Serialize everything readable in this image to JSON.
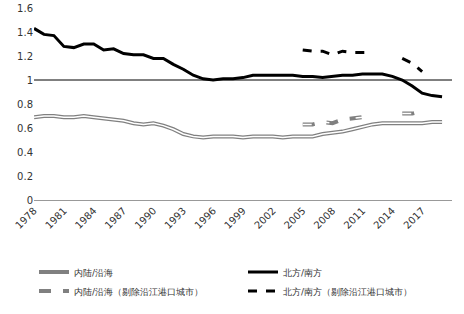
{
  "chart_data": {
    "type": "line",
    "x": [
      1978,
      1979,
      1980,
      1981,
      1982,
      1983,
      1984,
      1985,
      1986,
      1987,
      1988,
      1989,
      1990,
      1991,
      1992,
      1993,
      1994,
      1995,
      1996,
      1997,
      1998,
      1999,
      2000,
      2001,
      2002,
      2003,
      2004,
      2005,
      2006,
      2007,
      2008,
      2009,
      2010,
      2011,
      2012,
      2013,
      2014,
      2015,
      2016,
      2017,
      2018,
      2019
    ],
    "series": [
      {
        "name": "内陆/沿海",
        "color": "#808080",
        "line_style": "double",
        "values": [
          0.69,
          0.7,
          0.7,
          0.69,
          0.69,
          0.7,
          0.69,
          0.68,
          0.67,
          0.66,
          0.64,
          0.63,
          0.64,
          0.62,
          0.59,
          0.55,
          0.53,
          0.52,
          0.53,
          0.53,
          0.53,
          0.52,
          0.53,
          0.53,
          0.53,
          0.52,
          0.53,
          0.53,
          0.53,
          0.55,
          0.56,
          0.57,
          0.59,
          0.61,
          0.63,
          0.64,
          0.64,
          0.64,
          0.64,
          0.64,
          0.65,
          0.65
        ]
      },
      {
        "name": "北方/南方",
        "color": "#000000",
        "line_style": "bold",
        "values": [
          1.43,
          1.38,
          1.37,
          1.28,
          1.27,
          1.3,
          1.3,
          1.25,
          1.26,
          1.22,
          1.21,
          1.21,
          1.18,
          1.18,
          1.13,
          1.09,
          1.04,
          1.01,
          1.0,
          1.01,
          1.01,
          1.02,
          1.04,
          1.04,
          1.04,
          1.04,
          1.04,
          1.03,
          1.03,
          1.02,
          1.03,
          1.04,
          1.04,
          1.05,
          1.05,
          1.05,
          1.03,
          1.0,
          0.95,
          0.89,
          0.87,
          0.86
        ]
      },
      {
        "name": "内陆/沿海（剔除沿江港口城市）",
        "color": "#808080",
        "line_style": "double-dash",
        "values": [
          null,
          null,
          null,
          null,
          null,
          null,
          null,
          null,
          null,
          null,
          null,
          null,
          null,
          null,
          null,
          null,
          null,
          null,
          null,
          null,
          null,
          null,
          null,
          null,
          null,
          null,
          null,
          0.63,
          0.63,
          0.65,
          0.64,
          0.67,
          0.68,
          0.69,
          0.71,
          null,
          null,
          0.72,
          0.72,
          0.74,
          null,
          null
        ]
      },
      {
        "name": "北方/南方（剔除沿江港口城市）",
        "color": "#000000",
        "line_style": "bold-dash",
        "values": [
          null,
          null,
          null,
          null,
          null,
          null,
          null,
          null,
          null,
          null,
          null,
          null,
          null,
          null,
          null,
          null,
          null,
          null,
          null,
          null,
          null,
          null,
          null,
          null,
          null,
          null,
          null,
          1.25,
          1.24,
          1.24,
          1.21,
          1.24,
          1.23,
          1.23,
          1.23,
          null,
          null,
          1.18,
          1.14,
          1.07,
          null,
          null
        ]
      }
    ],
    "xlim": [
      1978,
      2020
    ],
    "xticks": [
      1978,
      1981,
      1984,
      1987,
      1990,
      1993,
      1996,
      1999,
      2002,
      2005,
      2008,
      2011,
      2014,
      2017
    ],
    "ylim": [
      0,
      1.6
    ],
    "yticks": [
      0,
      0.2,
      0.4,
      0.6,
      0.8,
      1,
      1.2,
      1.4,
      1.6
    ],
    "hline": 1,
    "grid": false,
    "legend": "bottom"
  }
}
